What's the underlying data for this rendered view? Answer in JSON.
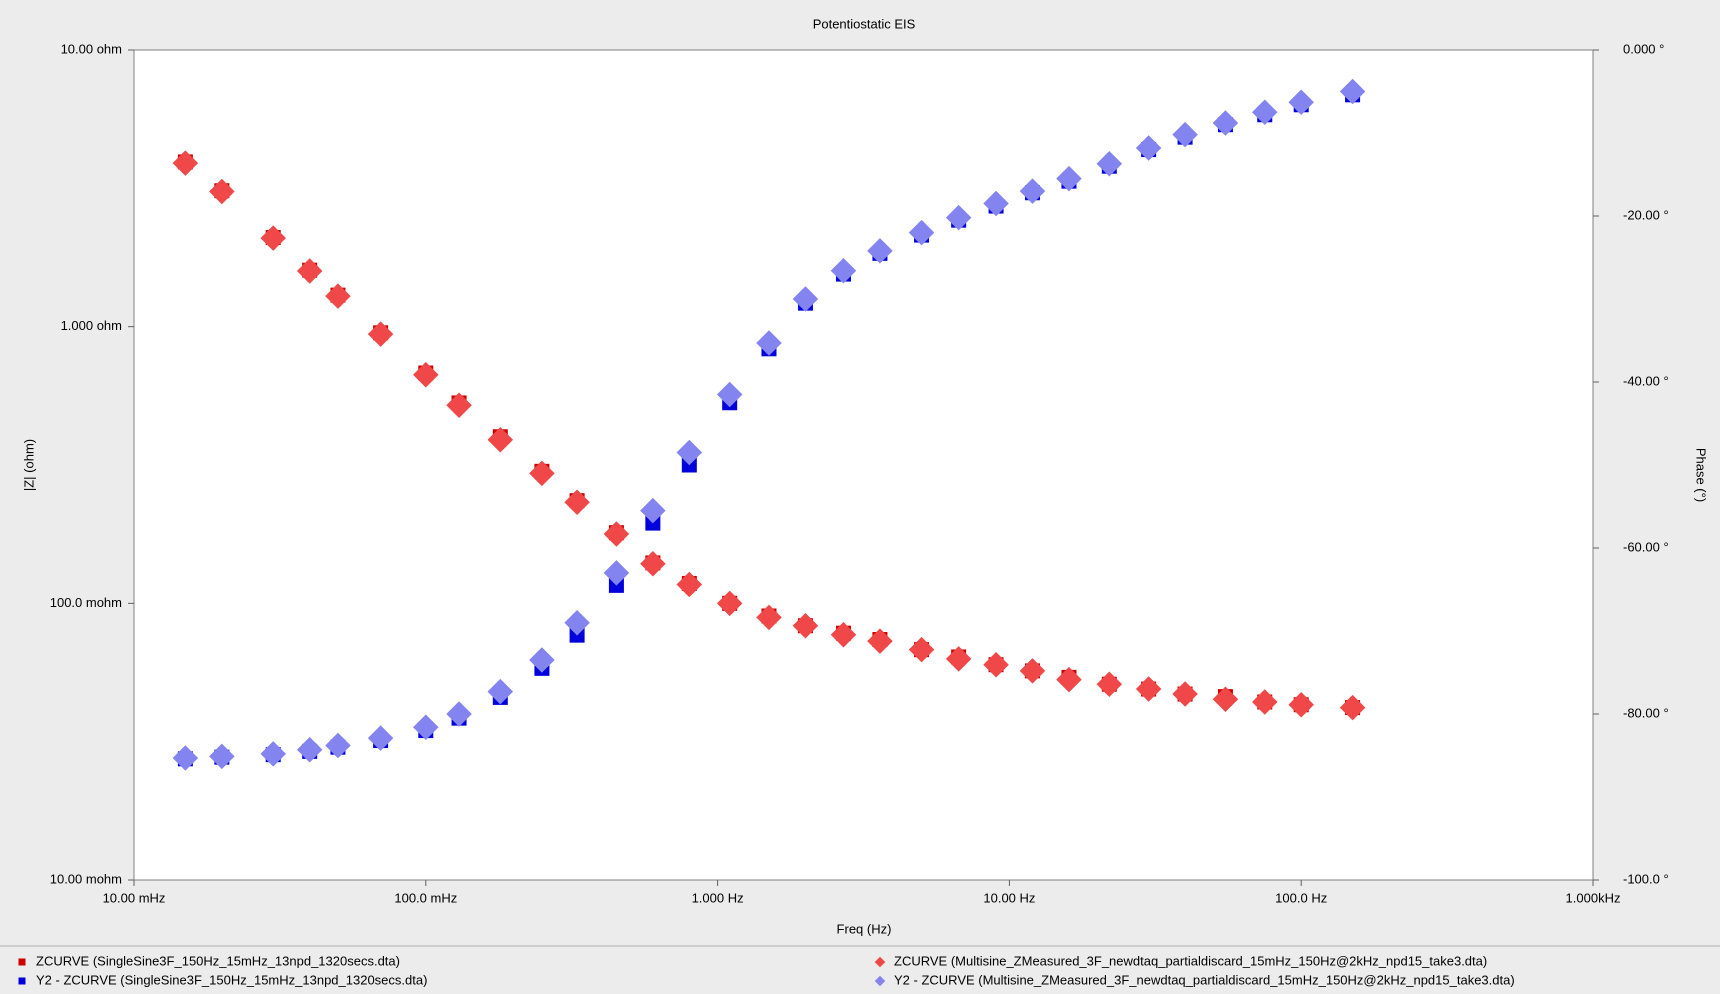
{
  "chart_data": {
    "type": "scatter",
    "title": "Potentiostatic EIS",
    "x_label": "Freq (Hz)",
    "y_label": "|Z| (ohm)",
    "y2_label": "Phase (°)",
    "x_scale": "log",
    "y_scale": "log",
    "x": [
      0.015,
      0.02,
      0.03,
      0.04,
      0.05,
      0.07,
      0.1,
      0.13,
      0.18,
      0.25,
      0.33,
      0.45,
      0.6,
      0.8,
      1.1,
      1.5,
      2,
      2.7,
      3.6,
      5,
      6.7,
      9,
      12,
      16,
      22,
      30,
      40,
      55,
      75,
      100,
      150
    ],
    "xlim": [
      0.01,
      1000
    ],
    "xticks": [
      {
        "value": 0.01,
        "label": "10.00 mHz"
      },
      {
        "value": 0.1,
        "label": "100.0 mHz"
      },
      {
        "value": 1,
        "label": "1.000 Hz"
      },
      {
        "value": 10,
        "label": "10.00 Hz"
      },
      {
        "value": 100,
        "label": "100.0 Hz"
      },
      {
        "value": 1000,
        "label": "1.000kHz"
      }
    ],
    "ylim": [
      0.01,
      10
    ],
    "yticks": [
      {
        "value": 0.01,
        "label": "10.00 mohm"
      },
      {
        "value": 0.1,
        "label": "100.0 mohm"
      },
      {
        "value": 1,
        "label": "1.000 ohm"
      },
      {
        "value": 10,
        "label": "10.00 ohm"
      }
    ],
    "y2lim": [
      -100,
      0
    ],
    "y2ticks": [
      {
        "value": -100,
        "label": "-100.0 °"
      },
      {
        "value": -80,
        "label": "-80.00 °"
      },
      {
        "value": -60,
        "label": "-60.00 °"
      },
      {
        "value": -40,
        "label": "-40.00 °"
      },
      {
        "value": -20,
        "label": "-20.00 °"
      },
      {
        "value": 0,
        "label": "0.000 °"
      }
    ],
    "series": [
      {
        "name": "ZCURVE (SingleSine3F_150Hz_15mHz_13npd_1320secs.dta)",
        "color": "#cc0000",
        "marker": "square",
        "values": [
          3.94,
          3.1,
          2.1,
          1.6,
          1.3,
          0.95,
          0.68,
          0.53,
          0.4,
          0.3,
          0.235,
          0.18,
          0.14,
          0.118,
          0.1,
          0.09,
          0.083,
          0.078,
          0.074,
          0.068,
          0.064,
          0.06,
          0.057,
          0.054,
          0.051,
          0.049,
          0.047,
          0.046,
          0.044,
          0.043,
          0.042
        ]
      },
      {
        "name": "Y2 - ZCURVE (SingleSine3F_150Hz_15mHz_13npd_1320secs.dta)",
        "color": "#0000dd",
        "marker": "square",
        "axis": "y2",
        "values": [
          -85.4,
          -85.2,
          -84.9,
          -84.5,
          -84.0,
          -83.2,
          -82.0,
          -80.5,
          -78.0,
          -74.5,
          -70.5,
          -64.5,
          -57.0,
          -50.0,
          -42.5,
          -36.0,
          -30.5,
          -27.0,
          -24.5,
          -22.3,
          -20.5,
          -18.8,
          -17.2,
          -15.8,
          -14.0,
          -12.0,
          -10.5,
          -9.0,
          -7.8,
          -6.6,
          -5.4
        ]
      },
      {
        "name": "ZCURVE (Multisine_ZMeasured_3F_newdtaq_partialdiscard_15mHz_150Hz@2kHz_npd15_take3.dta)",
        "color": "#f04848",
        "marker": "diamond",
        "values": [
          3.9,
          3.08,
          2.09,
          1.59,
          1.29,
          0.94,
          0.67,
          0.52,
          0.39,
          0.295,
          0.232,
          0.178,
          0.139,
          0.117,
          0.1,
          0.089,
          0.083,
          0.077,
          0.073,
          0.068,
          0.063,
          0.06,
          0.057,
          0.053,
          0.051,
          0.049,
          0.047,
          0.045,
          0.044,
          0.043,
          0.042
        ]
      },
      {
        "name": "Y2 - ZCURVE (Multisine_ZMeasured_3F_newdtaq_partialdiscard_15mHz_150Hz@2kHz_npd15_take3.dta)",
        "color": "#8484f0",
        "marker": "diamond",
        "axis": "y2",
        "values": [
          -85.3,
          -85.1,
          -84.8,
          -84.3,
          -83.8,
          -82.9,
          -81.6,
          -80.0,
          -77.3,
          -73.5,
          -69.0,
          -63.0,
          -55.5,
          -48.5,
          -41.5,
          -35.3,
          -30.0,
          -26.6,
          -24.2,
          -22.0,
          -20.2,
          -18.5,
          -17.0,
          -15.5,
          -13.7,
          -11.8,
          -10.2,
          -8.8,
          -7.5,
          -6.3,
          -5.0
        ]
      }
    ]
  }
}
